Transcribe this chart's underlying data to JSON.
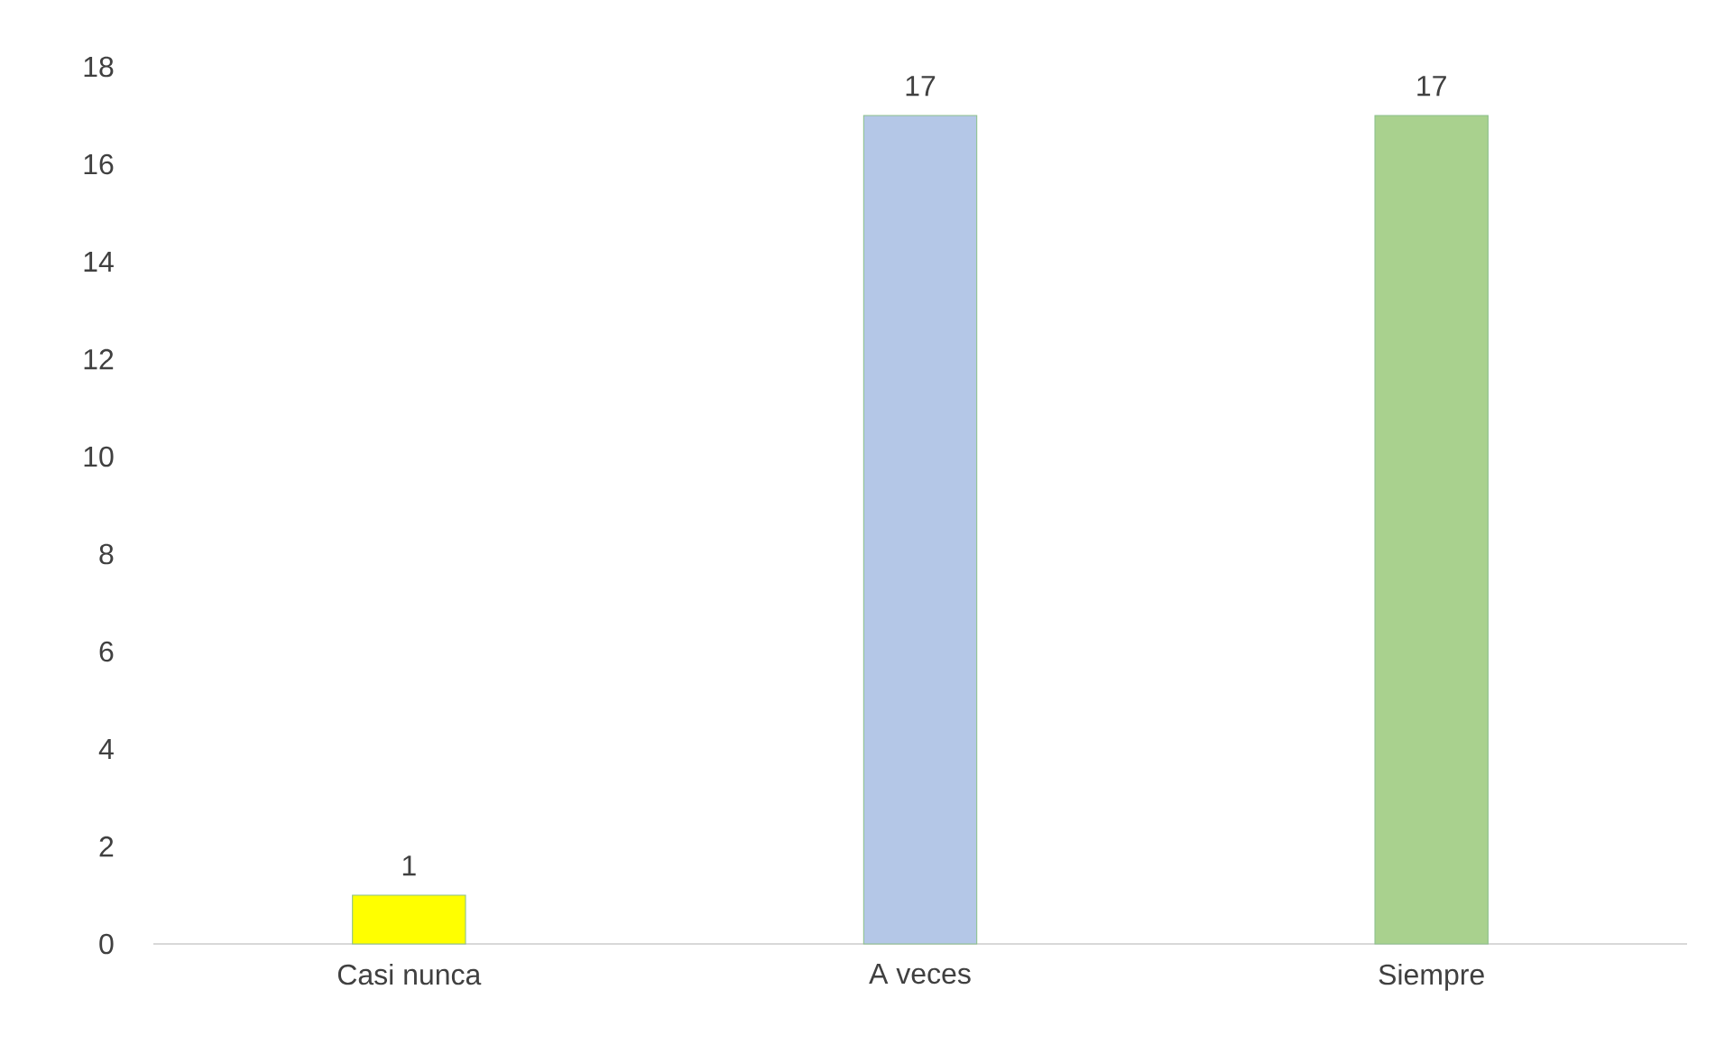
{
  "chart_data": {
    "type": "bar",
    "categories": [
      "Casi nunca",
      "A veces",
      "Siempre"
    ],
    "values": [
      1,
      17,
      17
    ],
    "colors": [
      "#ffff00",
      "#b4c7e7",
      "#a9d18e"
    ],
    "ylim": [
      0,
      18
    ],
    "yticks": [
      0,
      2,
      4,
      6,
      8,
      10,
      12,
      14,
      16,
      18
    ],
    "data_labels": true
  }
}
